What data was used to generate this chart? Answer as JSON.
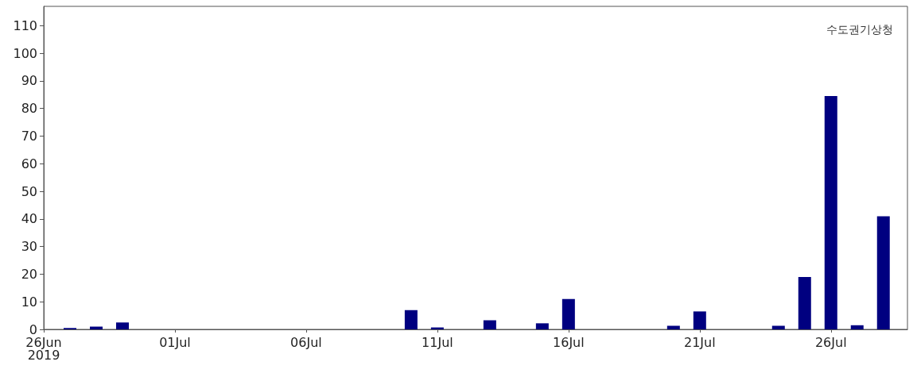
{
  "chart_data": {
    "type": "bar",
    "x": [
      "2019-06-27",
      "2019-06-28",
      "2019-06-29",
      "2019-06-30",
      "2019-07-10",
      "2019-07-11",
      "2019-07-13",
      "2019-07-15",
      "2019-07-16",
      "2019-07-17",
      "2019-07-20",
      "2019-07-21",
      "2019-07-24",
      "2019-07-25",
      "2019-07-26",
      "2019-07-27",
      "2019-07-28"
    ],
    "values": [
      0.5,
      1,
      2.5,
      null,
      7,
      0.7,
      3.3,
      2.2,
      11,
      null,
      1.3,
      6.5,
      1.3,
      19,
      84.5,
      1.5,
      41
    ],
    "color": "#000080",
    "xlim": [
      "2019-06-26",
      "2019-07-28T22:00"
    ],
    "xticks": [
      {
        "value": "2019-06-26",
        "label": "26Jun\n2019"
      },
      {
        "value": "2019-07-01",
        "label": "01Jul"
      },
      {
        "value": "2019-07-06",
        "label": "06Jul"
      },
      {
        "value": "2019-07-11",
        "label": "11Jul"
      },
      {
        "value": "2019-07-16",
        "label": "16Jul"
      },
      {
        "value": "2019-07-21",
        "label": "21Jul"
      },
      {
        "value": "2019-07-26",
        "label": "26Jul"
      }
    ],
    "ylim": [
      0,
      117
    ],
    "yticks": [
      0,
      10,
      20,
      30,
      40,
      50,
      60,
      70,
      80,
      90,
      100,
      110
    ],
    "grid": false,
    "annotations": [
      "수도권기상청"
    ]
  }
}
